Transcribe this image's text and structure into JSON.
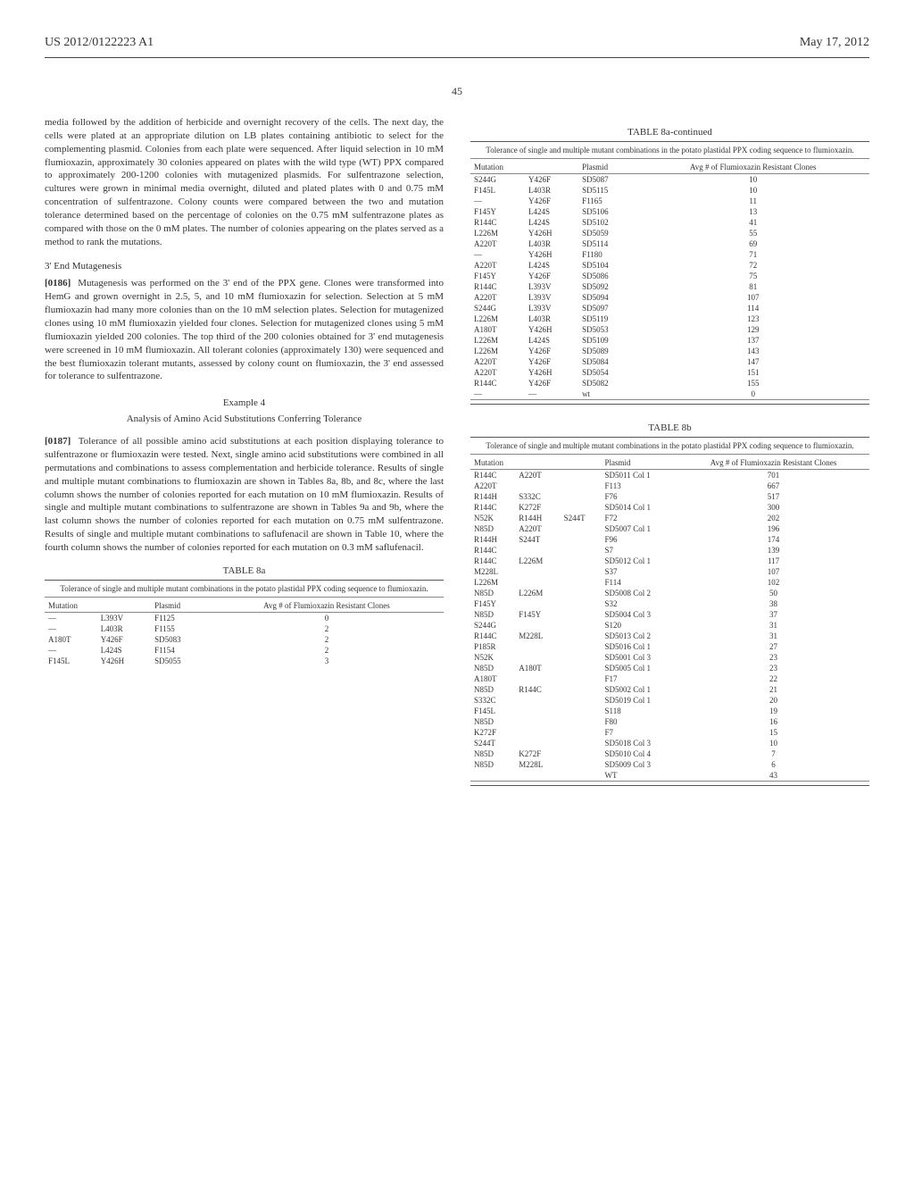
{
  "header": {
    "left": "US 2012/0122223 A1",
    "right": "May 17, 2012"
  },
  "page_number": "45",
  "left_column": {
    "para1": "media followed by the addition of herbicide and overnight recovery of the cells. The next day, the cells were plated at an appropriate dilution on LB plates containing antibiotic to select for the complementing plasmid. Colonies from each plate were sequenced. After liquid selection in 10 mM flumioxazin, approximately 30 colonies appeared on plates with the wild type (WT) PPX compared to approximately 200-1200 colonies with mutagenized plasmids. For sulfentrazone selection, cultures were grown in minimal media overnight, diluted and plated plates with 0 and 0.75 mM concentration of sulfentrazone. Colony counts were compared between the two and mutation tolerance determined based on the percentage of colonies on the 0.75 mM sulfentrazone plates as compared with those on the 0 mM plates. The number of colonies appearing on the plates served as a method to rank the mutations.",
    "subhead1": "3' End Mutagenesis",
    "para2_label": "[0186]",
    "para2": "Mutagenesis was performed on the 3' end of the PPX gene. Clones were transformed into HemG and grown overnight in 2.5, 5, and 10 mM flumioxazin for selection. Selection at 5 mM flumioxazin had many more colonies than on the 10 mM selection plates. Selection for mutagenized clones using 10 mM flumioxazin yielded four clones. Selection for mutagenized clones using 5 mM flumioxazin yielded 200 colonies. The top third of the 200 colonies obtained for 3' end mutagenesis were screened in 10 mM flumioxazin. All tolerant colonies (approximately 130) were sequenced and the best flumioxazin tolerant mutants, assessed by colony count on flumioxazin, the 3' end assessed for tolerance to sulfentrazone.",
    "example_label": "Example 4",
    "example_title": "Analysis of Amino Acid Substitutions Conferring Tolerance",
    "para3_label": "[0187]",
    "para3": "Tolerance of all possible amino acid substitutions at each position displaying tolerance to sulfentrazone or flumioxazin were tested. Next, single amino acid substitutions were combined in all permutations and combinations to assess complementation and herbicide tolerance. Results of single and multiple mutant combinations to flumioxazin are shown in Tables 8a, 8b, and 8c, where the last column shows the number of colonies reported for each mutation on 10 mM flumioxazin. Results of single and multiple mutant combinations to sulfentrazone are shown in Tables 9a and 9b, where the last column shows the number of colonies reported for each mutation on 0.75 mM sulfentrazone. Results of single and multiple mutant combinations to saflufenacil are shown in Table 10, where the fourth column shows the number of colonies reported for each mutation on 0.3 mM saflufenacil.",
    "table8a_label": "TABLE 8a",
    "table8a_caption": "Tolerance of single and multiple mutant combinations in the potato plastidal PPX coding sequence to flumioxazin.",
    "table8a_headers": {
      "mut": "Mutation",
      "plasmid": "Plasmid",
      "avg": "Avg # of Flumioxazin Resistant Clones"
    },
    "table8a_rows": [
      {
        "m1": "—",
        "m2": "L393V",
        "p": "F1125",
        "v": "0"
      },
      {
        "m1": "—",
        "m2": "L403R",
        "p": "F1155",
        "v": "2"
      },
      {
        "m1": "A180T",
        "m2": "Y426F",
        "p": "SD5083",
        "v": "2"
      },
      {
        "m1": "—",
        "m2": "L424S",
        "p": "F1154",
        "v": "2"
      },
      {
        "m1": "F145L",
        "m2": "Y426H",
        "p": "SD5055",
        "v": "3"
      }
    ]
  },
  "right_column": {
    "table8a_cont_label": "TABLE 8a-continued",
    "table8a_cont_caption": "Tolerance of single and multiple mutant combinations in the potato plastidal PPX coding sequence to flumioxazin.",
    "table8a_cont_headers": {
      "mut": "Mutation",
      "plasmid": "Plasmid",
      "avg": "Avg # of Flumioxazin Resistant Clones"
    },
    "table8a_cont_rows": [
      {
        "m1": "S244G",
        "m2": "Y426F",
        "p": "SD5087",
        "v": "10"
      },
      {
        "m1": "F145L",
        "m2": "L403R",
        "p": "SD5115",
        "v": "10"
      },
      {
        "m1": "—",
        "m2": "Y426F",
        "p": "F1165",
        "v": "11"
      },
      {
        "m1": "F145Y",
        "m2": "L424S",
        "p": "SD5106",
        "v": "13"
      },
      {
        "m1": "R144C",
        "m2": "L424S",
        "p": "SD5102",
        "v": "41"
      },
      {
        "m1": "L226M",
        "m2": "Y426H",
        "p": "SD5059",
        "v": "55"
      },
      {
        "m1": "A220T",
        "m2": "L403R",
        "p": "SD5114",
        "v": "69"
      },
      {
        "m1": "—",
        "m2": "Y426H",
        "p": "F1180",
        "v": "71"
      },
      {
        "m1": "A220T",
        "m2": "L424S",
        "p": "SD5104",
        "v": "72"
      },
      {
        "m1": "F145Y",
        "m2": "Y426F",
        "p": "SD5086",
        "v": "75"
      },
      {
        "m1": "R144C",
        "m2": "L393V",
        "p": "SD5092",
        "v": "81"
      },
      {
        "m1": "A220T",
        "m2": "L393V",
        "p": "SD5094",
        "v": "107"
      },
      {
        "m1": "S244G",
        "m2": "L393V",
        "p": "SD5097",
        "v": "114"
      },
      {
        "m1": "L226M",
        "m2": "L403R",
        "p": "SD5119",
        "v": "123"
      },
      {
        "m1": "A180T",
        "m2": "Y426H",
        "p": "SD5053",
        "v": "129"
      },
      {
        "m1": "L226M",
        "m2": "L424S",
        "p": "SD5109",
        "v": "137"
      },
      {
        "m1": "L226M",
        "m2": "Y426F",
        "p": "SD5089",
        "v": "143"
      },
      {
        "m1": "A220T",
        "m2": "Y426F",
        "p": "SD5084",
        "v": "147"
      },
      {
        "m1": "A220T",
        "m2": "Y426H",
        "p": "SD5054",
        "v": "151"
      },
      {
        "m1": "R144C",
        "m2": "Y426F",
        "p": "SD5082",
        "v": "155"
      },
      {
        "m1": "—",
        "m2": "—",
        "p": "wt",
        "v": "0"
      }
    ],
    "table8b_label": "TABLE 8b",
    "table8b_caption": "Tolerance of single and multiple mutant combinations in the potato plastidal PPX coding sequence to flumioxazin.",
    "table8b_headers": {
      "mut": "Mutation",
      "plasmid": "Plasmid",
      "avg": "Avg # of Flumioxazin Resistant Clones"
    },
    "table8b_rows": [
      {
        "m1": "R144C",
        "m2": "A220T",
        "m3": "",
        "p": "SD5011 Col 1",
        "v": "701"
      },
      {
        "m1": "A220T",
        "m2": "",
        "m3": "",
        "p": "F113",
        "v": "667"
      },
      {
        "m1": "R144H",
        "m2": "S332C",
        "m3": "",
        "p": "F76",
        "v": "517"
      },
      {
        "m1": "R144C",
        "m2": "K272F",
        "m3": "",
        "p": "SD5014 Col 1",
        "v": "300"
      },
      {
        "m1": "N52K",
        "m2": "R144H",
        "m3": "S244T",
        "p": "F72",
        "v": "202"
      },
      {
        "m1": "N85D",
        "m2": "A220T",
        "m3": "",
        "p": "SD5007 Col 1",
        "v": "196"
      },
      {
        "m1": "R144H",
        "m2": "S244T",
        "m3": "",
        "p": "F96",
        "v": "174"
      },
      {
        "m1": "R144C",
        "m2": "",
        "m3": "",
        "p": "S7",
        "v": "139"
      },
      {
        "m1": "R144C",
        "m2": "L226M",
        "m3": "",
        "p": "SD5012 Col 1",
        "v": "117"
      },
      {
        "m1": "M228L",
        "m2": "",
        "m3": "",
        "p": "S37",
        "v": "107"
      },
      {
        "m1": "L226M",
        "m2": "",
        "m3": "",
        "p": "F114",
        "v": "102"
      },
      {
        "m1": "N85D",
        "m2": "L226M",
        "m3": "",
        "p": "SD5008 Col 2",
        "v": "50"
      },
      {
        "m1": "F145Y",
        "m2": "",
        "m3": "",
        "p": "S32",
        "v": "38"
      },
      {
        "m1": "N85D",
        "m2": "F145Y",
        "m3": "",
        "p": "SD5004 Col 3",
        "v": "37"
      },
      {
        "m1": "S244G",
        "m2": "",
        "m3": "",
        "p": "S120",
        "v": "31"
      },
      {
        "m1": "R144C",
        "m2": "M228L",
        "m3": "",
        "p": "SD5013 Col 2",
        "v": "31"
      },
      {
        "m1": "P185R",
        "m2": "",
        "m3": "",
        "p": "SD5016 Col 1",
        "v": "27"
      },
      {
        "m1": "N52K",
        "m2": "",
        "m3": "",
        "p": "SD5001 Col 3",
        "v": "23"
      },
      {
        "m1": "N85D",
        "m2": "A180T",
        "m3": "",
        "p": "SD5005 Col 1",
        "v": "23"
      },
      {
        "m1": "A180T",
        "m2": "",
        "m3": "",
        "p": "F17",
        "v": "22"
      },
      {
        "m1": "N85D",
        "m2": "R144C",
        "m3": "",
        "p": "SD5002 Col 1",
        "v": "21"
      },
      {
        "m1": "S332C",
        "m2": "",
        "m3": "",
        "p": "SD5019 Col 1",
        "v": "20"
      },
      {
        "m1": "F145L",
        "m2": "",
        "m3": "",
        "p": "S118",
        "v": "19"
      },
      {
        "m1": "N85D",
        "m2": "",
        "m3": "",
        "p": "F80",
        "v": "16"
      },
      {
        "m1": "K272F",
        "m2": "",
        "m3": "",
        "p": "F7",
        "v": "15"
      },
      {
        "m1": "S244T",
        "m2": "",
        "m3": "",
        "p": "SD5018 Col 3",
        "v": "10"
      },
      {
        "m1": "N85D",
        "m2": "K272F",
        "m3": "",
        "p": "SD5010 Col 4",
        "v": "7"
      },
      {
        "m1": "N85D",
        "m2": "M228L",
        "m3": "",
        "p": "SD5009 Col 3",
        "v": "6"
      },
      {
        "m1": "",
        "m2": "",
        "m3": "",
        "p": "WT",
        "v": "43"
      }
    ]
  }
}
